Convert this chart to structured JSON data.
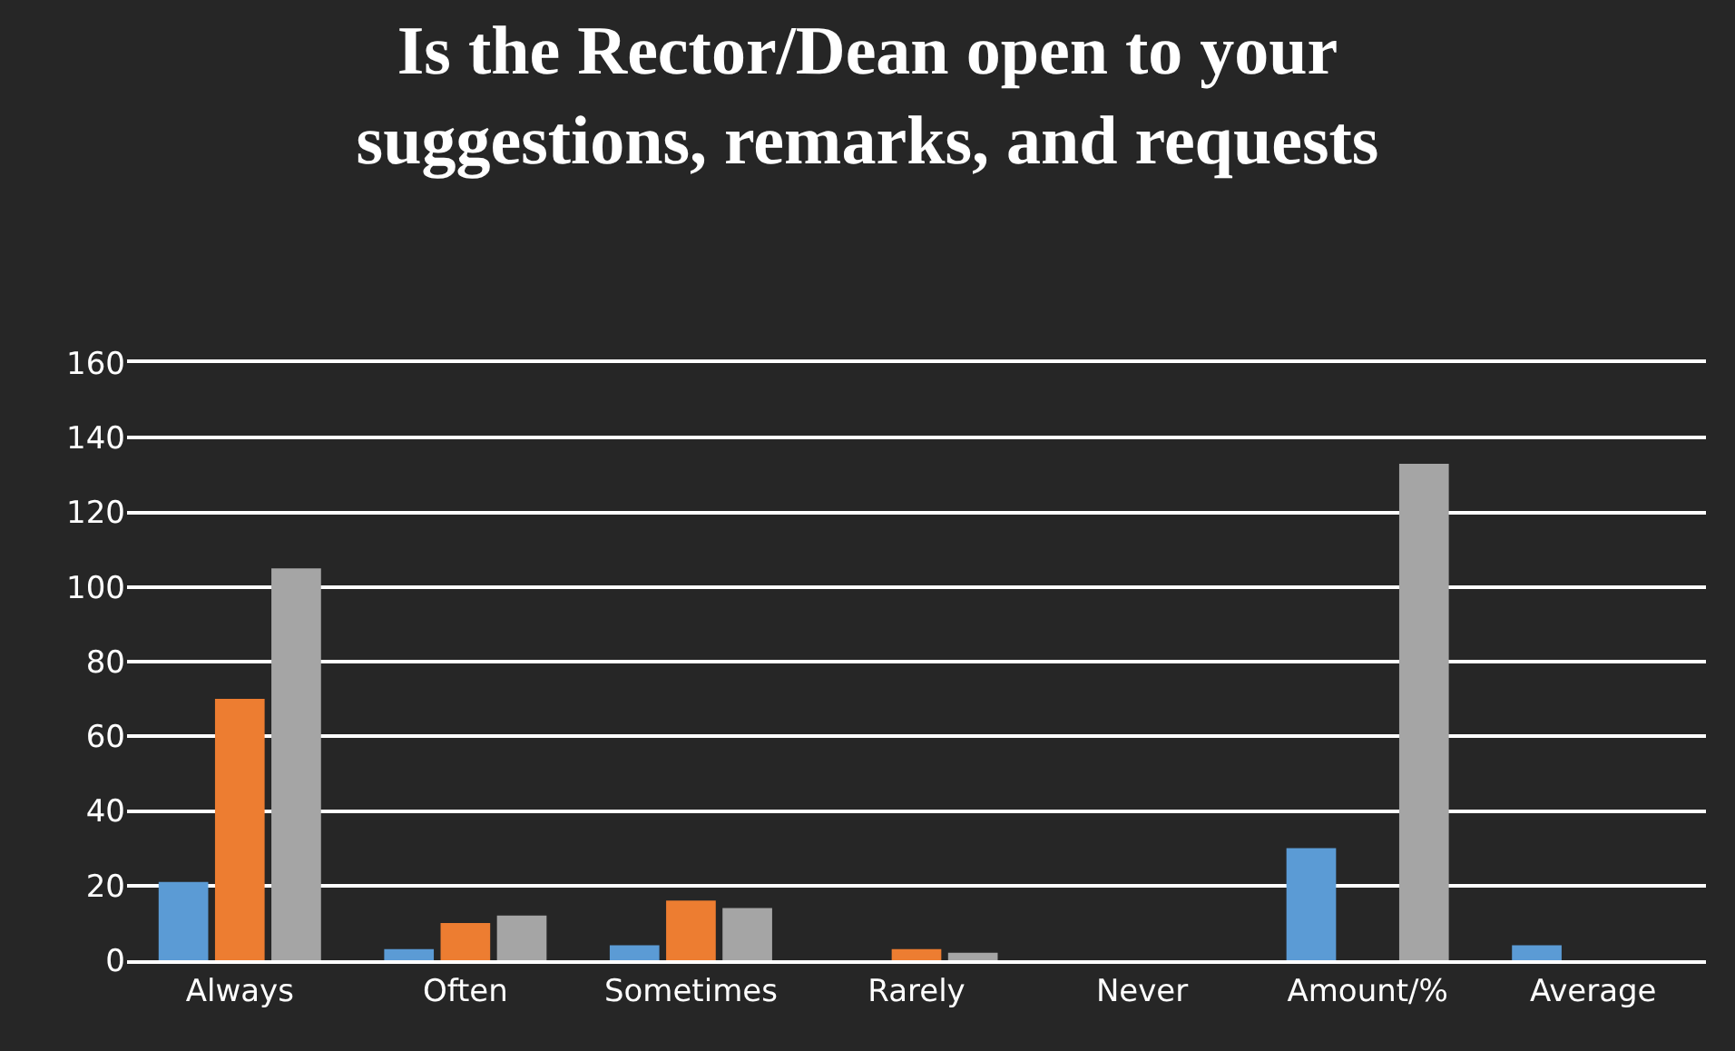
{
  "chart_data": {
    "type": "bar",
    "title": "Is the Rector/Dean open to your\nsuggestions, remarks, and requests",
    "categories": [
      "Always",
      "Often",
      "Sometimes",
      "Rarely",
      "Never",
      "Amount/%",
      "Average"
    ],
    "series": [
      {
        "color": "#5b9bd5",
        "values": [
          21,
          3,
          4,
          null,
          null,
          30,
          4
        ]
      },
      {
        "color": "#ed7d31",
        "values": [
          70,
          10,
          16,
          3,
          null,
          null,
          null
        ]
      },
      {
        "color": "#a5a5a5",
        "values": [
          105,
          12,
          14,
          2,
          null,
          133,
          null
        ]
      }
    ],
    "ylim": [
      0,
      160
    ],
    "yticks": [
      0,
      20,
      40,
      60,
      80,
      100,
      120,
      140,
      160
    ],
    "grid": "y"
  }
}
